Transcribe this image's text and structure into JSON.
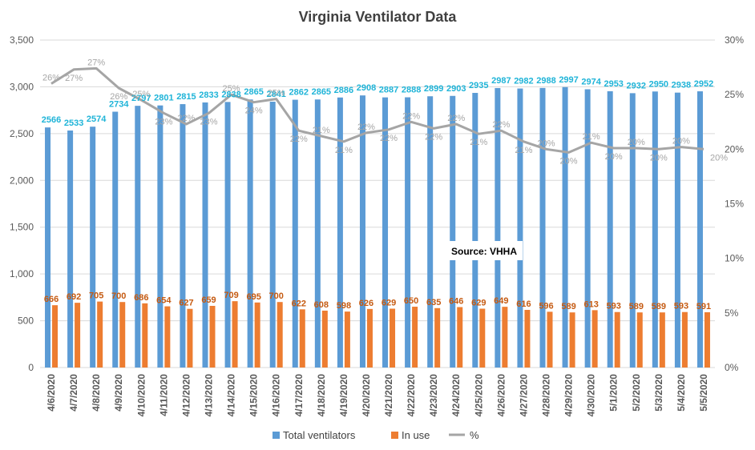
{
  "chart_data": {
    "type": "bar",
    "title": "Virginia Ventilator Data",
    "annotation": "Source: VHHA",
    "categories": [
      "4/6/2020",
      "4/7/2020",
      "4/8/2020",
      "4/9/2020",
      "4/10/2020",
      "4/11/2020",
      "4/12/2020",
      "4/13/2020",
      "4/14/2020",
      "4/15/2020",
      "4/16/2020",
      "4/17/2020",
      "4/18/2020",
      "4/19/2020",
      "4/20/2020",
      "4/21/2020",
      "4/22/2020",
      "4/23/2020",
      "4/24/2020",
      "4/25/2020",
      "4/26/2020",
      "4/27/2020",
      "4/28/2020",
      "4/29/2020",
      "4/30/2020",
      "5/1/2020",
      "5/2/2020",
      "5/3/2020",
      "5/4/2020",
      "5/5/2020"
    ],
    "series": [
      {
        "name": "Total ventilators",
        "type": "bar",
        "axis": "left",
        "color": "#5b9bd5",
        "label_color": "#1fb4d8",
        "values": [
          2566,
          2533,
          2574,
          2734,
          2797,
          2801,
          2815,
          2833,
          2838,
          2865,
          2841,
          2862,
          2865,
          2886,
          2908,
          2887,
          2888,
          2899,
          2903,
          2935,
          2987,
          2982,
          2988,
          2997,
          2974,
          2953,
          2932,
          2950,
          2938,
          2952
        ],
        "labels": [
          "2566",
          "2533",
          "2574",
          "2734",
          "2797",
          "2801",
          "2815",
          "2833",
          "2838",
          "2865",
          "2841",
          "2862",
          "2865",
          "2886",
          "2908",
          "2887",
          "2888",
          "2899",
          "2903",
          "2935",
          "2987",
          "2982",
          "2988",
          "2997",
          "2974",
          "2953",
          "2932",
          "2950",
          "2938",
          "2952"
        ]
      },
      {
        "name": "In use",
        "type": "bar",
        "axis": "left",
        "color": "#ed7d31",
        "label_color": "#c55a11",
        "values": [
          666,
          692,
          705,
          700,
          686,
          654,
          627,
          659,
          709,
          695,
          700,
          622,
          608,
          598,
          626,
          629,
          650,
          635,
          646,
          629,
          649,
          616,
          596,
          589,
          613,
          593,
          589,
          589,
          593,
          591
        ],
        "labels": [
          "666",
          "692",
          "705",
          "700",
          "686",
          "654",
          "627",
          "659",
          "709",
          "695",
          "700",
          "622",
          "608",
          "598",
          "626",
          "629",
          "650",
          "635",
          "646",
          "629",
          "649",
          "616",
          "596",
          "589",
          "613",
          "593",
          "589",
          "589",
          "593",
          "591"
        ]
      },
      {
        "name": "%",
        "type": "line",
        "axis": "right",
        "color": "#a5a5a5",
        "values": [
          26,
          27.3,
          27.4,
          25.6,
          24.5,
          23.3,
          22.3,
          23.3,
          25,
          24.3,
          24.6,
          21.7,
          21.2,
          20.7,
          21.5,
          21.8,
          22.5,
          21.9,
          22.3,
          21.4,
          21.7,
          20.7,
          20,
          19.7,
          20.6,
          20.1,
          20.1,
          20,
          20.2,
          20
        ],
        "labels": [
          "26%",
          "27%",
          "27%",
          "26%",
          "25%",
          "23%",
          "22%",
          "23%",
          "25%",
          "24%",
          "25%",
          "22%",
          "21%",
          "21%",
          "22%",
          "22%",
          "22%",
          "22%",
          "22%",
          "21%",
          "22%",
          "21%",
          "20%",
          "20%",
          "21%",
          "20%",
          "20%",
          "20%",
          "20%",
          "20%"
        ]
      }
    ],
    "y_left": {
      "min": 0,
      "max": 3500,
      "step": 500,
      "tick_labels": [
        "0",
        "500",
        "1,000",
        "1,500",
        "2,000",
        "2,500",
        "3,000",
        "3,500"
      ]
    },
    "y_right": {
      "min": 0,
      "max": 30,
      "step": 5,
      "tick_labels": [
        "0%",
        "5%",
        "10%",
        "15%",
        "20%",
        "25%",
        "30%"
      ]
    },
    "grid": true,
    "legend_position": "bottom",
    "legend": [
      "Total ventilators",
      "In use",
      "%"
    ]
  }
}
